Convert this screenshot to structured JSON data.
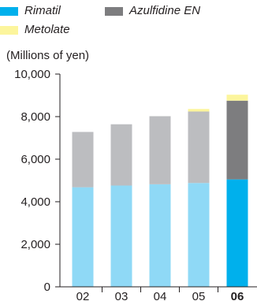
{
  "legend": [
    {
      "label": "Rimatil",
      "color": "#00b0ec"
    },
    {
      "label": "Azulfidine EN",
      "color": "#7d7d7f"
    },
    {
      "label": "Metolate",
      "color": "#fcf59c"
    }
  ],
  "unit_label": "(Millions of yen)",
  "chart_data": {
    "type": "bar",
    "stacked": true,
    "categories": [
      "02",
      "03",
      "04",
      "05",
      "06"
    ],
    "highlight_category": "06",
    "series": [
      {
        "name": "Rimatil",
        "values": [
          4680,
          4760,
          4820,
          4880,
          5050
        ],
        "color": "#8fd9f6",
        "highlight_color": "#00b0ec"
      },
      {
        "name": "Azulfidine EN",
        "values": [
          2600,
          2880,
          3200,
          3360,
          3700
        ],
        "color": "#bcbdc0",
        "highlight_color": "#7d7d7f"
      },
      {
        "name": "Metolate",
        "values": [
          0,
          0,
          0,
          120,
          280
        ],
        "color": "#fcf59c",
        "highlight_color": "#fcf59c"
      }
    ],
    "ylim": [
      0,
      10000
    ],
    "yticks": [
      0,
      2000,
      4000,
      6000,
      8000,
      10000
    ],
    "ytick_labels": [
      "0",
      "2,000",
      "4,000",
      "6,000",
      "8,000",
      "10,000"
    ],
    "grid": false,
    "legend_position": "top-left",
    "title": "",
    "xlabel": "",
    "ylabel": "(Millions of yen)"
  }
}
